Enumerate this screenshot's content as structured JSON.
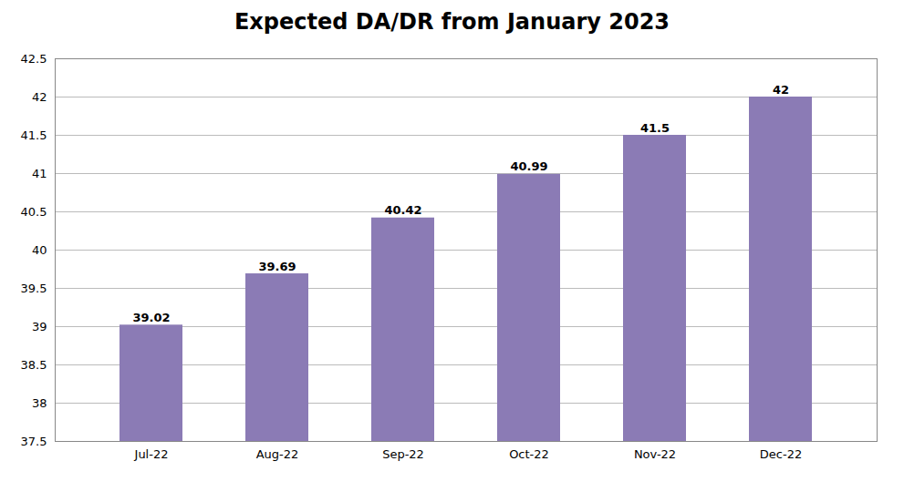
{
  "chart_data": {
    "type": "bar",
    "title": "Expected DA/DR from January 2023",
    "categories": [
      "Jul-22",
      "Aug-22",
      "Sep-22",
      "Oct-22",
      "Nov-22",
      "Dec-22"
    ],
    "values": [
      39.02,
      39.69,
      40.42,
      40.99,
      41.5,
      42
    ],
    "color": "#8B7BB5",
    "ylim": [
      37.5,
      42.5
    ],
    "yticks": [
      37.5,
      38.0,
      38.5,
      39.0,
      39.5,
      40.0,
      40.5,
      41.0,
      41.5,
      42.0,
      42.5
    ],
    "grid": true,
    "data_labels": true
  }
}
